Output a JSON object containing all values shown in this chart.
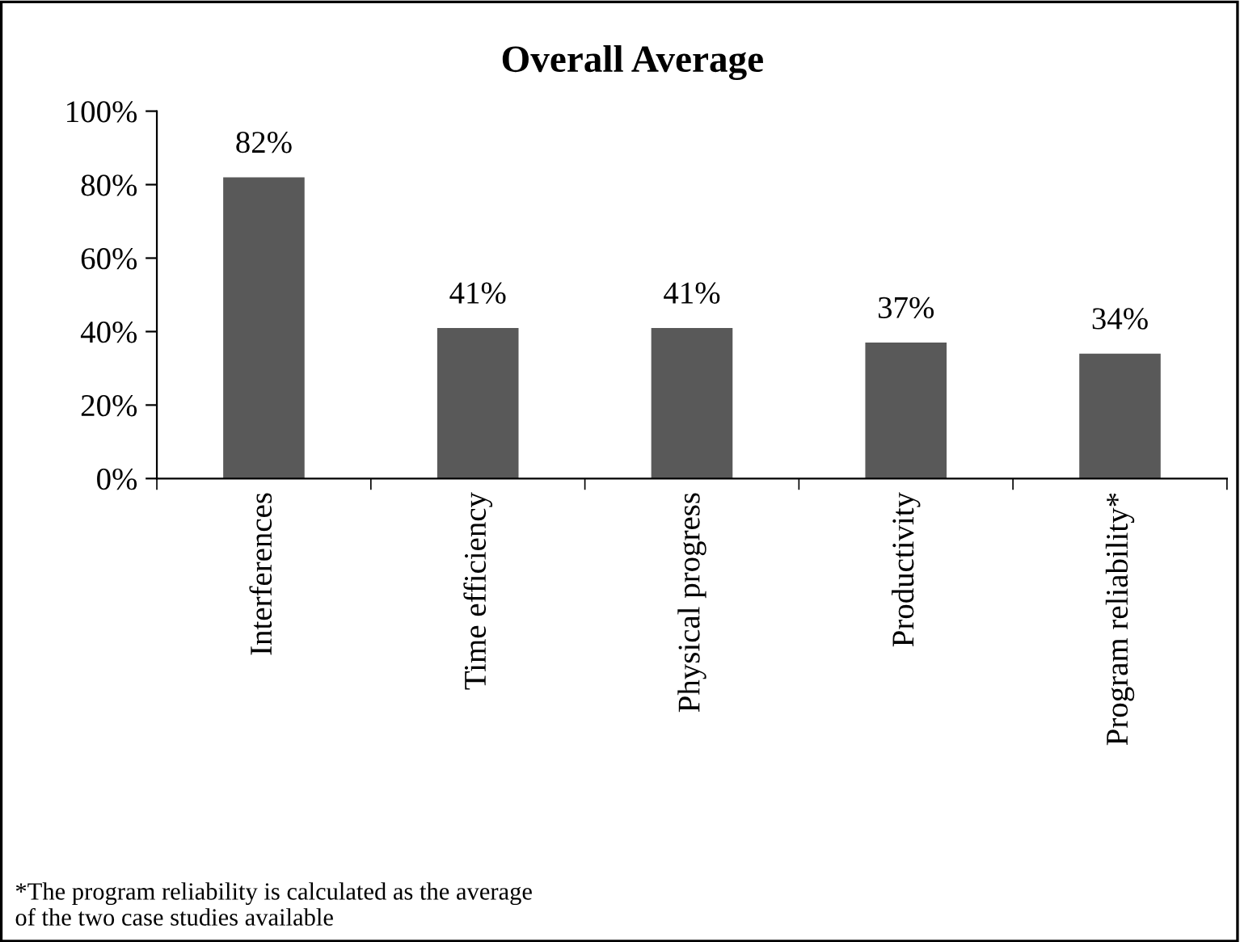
{
  "chart_data": {
    "type": "bar",
    "title": "Overall Average",
    "categories": [
      "Interferences",
      "Time efficiency",
      "Physical progress",
      "Productivity",
      "Program reliability*"
    ],
    "values": [
      82,
      41,
      41,
      37,
      34
    ],
    "value_labels": [
      "82%",
      "41%",
      "41%",
      "37%",
      "34%"
    ],
    "color": "#595959",
    "ylim": [
      0,
      100
    ],
    "yticks": [
      {
        "value": 0,
        "label": "0%"
      },
      {
        "value": 20,
        "label": "20%"
      },
      {
        "value": 40,
        "label": "40%"
      },
      {
        "value": 60,
        "label": "60%"
      },
      {
        "value": 80,
        "label": "80%"
      },
      {
        "value": 100,
        "label": "100%"
      }
    ],
    "grid": false,
    "legend": false,
    "annotations": [
      "*The program reliability is calculated as the average\nof the two case studies available"
    ]
  }
}
